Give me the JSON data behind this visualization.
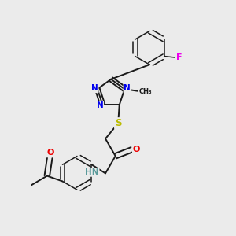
{
  "bg_color": "#ebebeb",
  "bond_color": "#1a1a1a",
  "atom_colors": {
    "N": "#0000ee",
    "O": "#ee0000",
    "S": "#bbbb00",
    "F": "#ee00ee",
    "H": "#5a9a9a",
    "C": "#1a1a1a"
  },
  "font_size": 7.5,
  "bond_width": 1.4,
  "dbo": 0.013,
  "bl": 0.078
}
